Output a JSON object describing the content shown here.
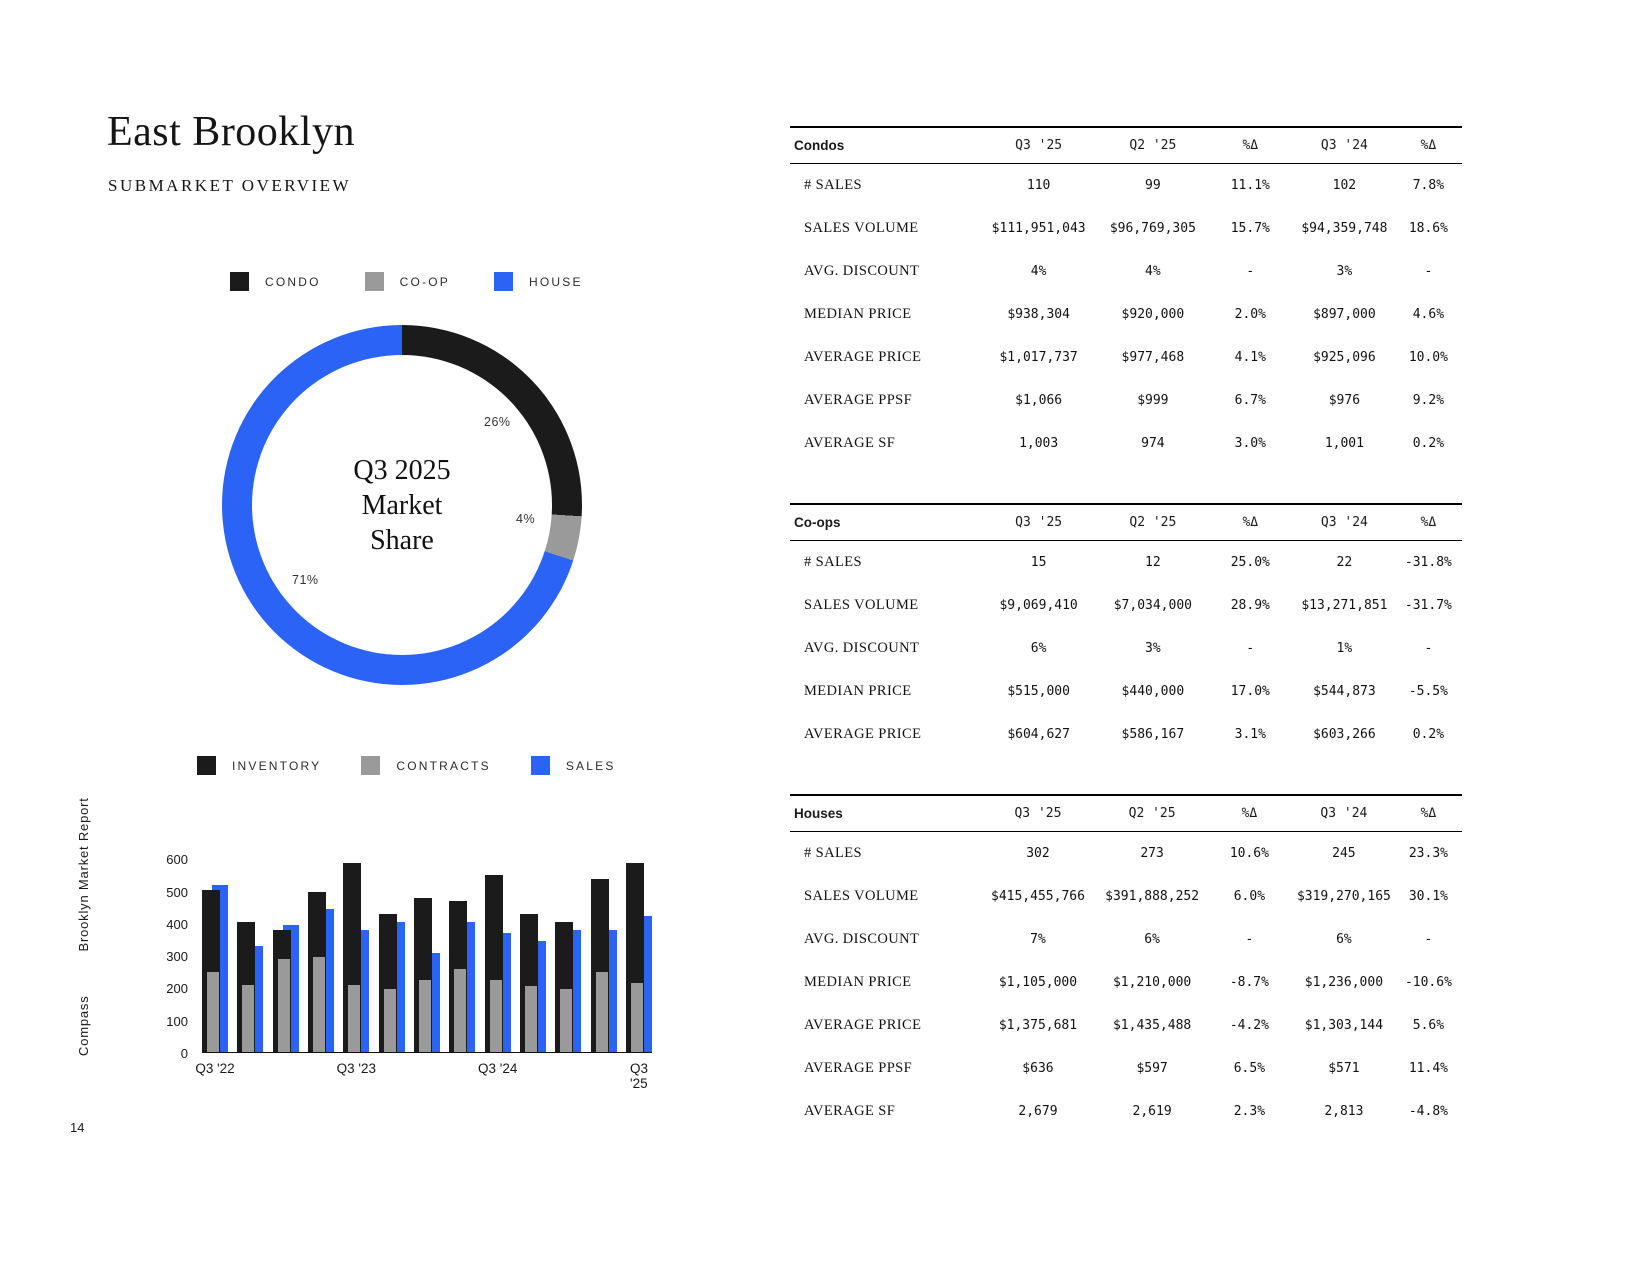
{
  "page": {
    "title": "East Brooklyn",
    "subtitle": "SUBMARKET OVERVIEW",
    "brand": "Compass",
    "report_name": "Brooklyn Market Report",
    "page_number": "14"
  },
  "colors": {
    "condo": "#1b1b1b",
    "coop": "#9a9a9a",
    "house": "#2a63f6"
  },
  "chart_data": [
    {
      "type": "pie",
      "title": "Q3 2025 Market Share",
      "center_lines": [
        "Q3 2025",
        "Market",
        "Share"
      ],
      "legend": [
        {
          "label": "CONDO",
          "color": "#1b1b1b"
        },
        {
          "label": "CO-OP",
          "color": "#9a9a9a"
        },
        {
          "label": "HOUSE",
          "color": "#2a63f6"
        }
      ],
      "slices": [
        {
          "label": "CONDO",
          "value": 26,
          "color": "#1b1b1b"
        },
        {
          "label": "CO-OP",
          "value": 4,
          "color": "#9a9a9a"
        },
        {
          "label": "HOUSE",
          "value": 71,
          "color": "#2a63f6"
        }
      ],
      "slice_labels": [
        "26%",
        "4%",
        "71%"
      ]
    },
    {
      "type": "bar",
      "legend": [
        {
          "label": "INVENTORY",
          "color": "#1b1b1b"
        },
        {
          "label": "CONTRACTS",
          "color": "#9a9a9a"
        },
        {
          "label": "SALES",
          "color": "#2a63f6"
        }
      ],
      "x_tick_labels": [
        "Q3 '22",
        "Q3 '23",
        "Q3 '24",
        "Q3 '25"
      ],
      "x_tick_positions": [
        0,
        4,
        8,
        12
      ],
      "y_ticks": [
        0,
        100,
        200,
        300,
        400,
        500,
        600
      ],
      "ylim": [
        0,
        620
      ],
      "series": [
        {
          "name": "INVENTORY",
          "color": "#1b1b1b",
          "values": [
            505,
            405,
            380,
            500,
            590,
            430,
            480,
            470,
            550,
            430,
            405,
            540,
            590
          ]
        },
        {
          "name": "CONTRACTS",
          "color": "#9a9a9a",
          "values": [
            250,
            210,
            290,
            295,
            210,
            195,
            225,
            260,
            225,
            205,
            195,
            250,
            215
          ]
        },
        {
          "name": "SALES",
          "color": "#2a63f6",
          "values": [
            520,
            330,
            395,
            445,
            380,
            405,
            310,
            405,
            370,
            345,
            380,
            380,
            425
          ]
        }
      ]
    }
  ],
  "tables": [
    {
      "title": "Condos",
      "headers": [
        "Q3 '25",
        "Q2 '25",
        "%Δ",
        "Q3 '24",
        "%Δ"
      ],
      "rows": [
        {
          "label": "# SALES",
          "values": [
            "110",
            "99",
            "11.1%",
            "102",
            "7.8%"
          ]
        },
        {
          "label": "SALES VOLUME",
          "values": [
            "$111,951,043",
            "$96,769,305",
            "15.7%",
            "$94,359,748",
            "18.6%"
          ]
        },
        {
          "label": "AVG. DISCOUNT",
          "values": [
            "4%",
            "4%",
            "-",
            "3%",
            "-"
          ]
        },
        {
          "label": "MEDIAN PRICE",
          "values": [
            "$938,304",
            "$920,000",
            "2.0%",
            "$897,000",
            "4.6%"
          ]
        },
        {
          "label": "AVERAGE PRICE",
          "values": [
            "$1,017,737",
            "$977,468",
            "4.1%",
            "$925,096",
            "10.0%"
          ]
        },
        {
          "label": "AVERAGE PPSF",
          "values": [
            "$1,066",
            "$999",
            "6.7%",
            "$976",
            "9.2%"
          ]
        },
        {
          "label": "AVERAGE SF",
          "values": [
            "1,003",
            "974",
            "3.0%",
            "1,001",
            "0.2%"
          ]
        }
      ]
    },
    {
      "title": "Co-ops",
      "headers": [
        "Q3 '25",
        "Q2 '25",
        "%Δ",
        "Q3 '24",
        "%Δ"
      ],
      "rows": [
        {
          "label": "# SALES",
          "values": [
            "15",
            "12",
            "25.0%",
            "22",
            "-31.8%"
          ]
        },
        {
          "label": "SALES VOLUME",
          "values": [
            "$9,069,410",
            "$7,034,000",
            "28.9%",
            "$13,271,851",
            "-31.7%"
          ]
        },
        {
          "label": "AVG. DISCOUNT",
          "values": [
            "6%",
            "3%",
            "-",
            "1%",
            "-"
          ]
        },
        {
          "label": "MEDIAN PRICE",
          "values": [
            "$515,000",
            "$440,000",
            "17.0%",
            "$544,873",
            "-5.5%"
          ]
        },
        {
          "label": "AVERAGE PRICE",
          "values": [
            "$604,627",
            "$586,167",
            "3.1%",
            "$603,266",
            "0.2%"
          ]
        }
      ]
    },
    {
      "title": "Houses",
      "headers": [
        "Q3 '25",
        "Q2 '25",
        "%Δ",
        "Q3 '24",
        "%Δ"
      ],
      "rows": [
        {
          "label": "# SALES",
          "values": [
            "302",
            "273",
            "10.6%",
            "245",
            "23.3%"
          ]
        },
        {
          "label": "SALES VOLUME",
          "values": [
            "$415,455,766",
            "$391,888,252",
            "6.0%",
            "$319,270,165",
            "30.1%"
          ]
        },
        {
          "label": "AVG. DISCOUNT",
          "values": [
            "7%",
            "6%",
            "-",
            "6%",
            "-"
          ]
        },
        {
          "label": "MEDIAN PRICE",
          "values": [
            "$1,105,000",
            "$1,210,000",
            "-8.7%",
            "$1,236,000",
            "-10.6%"
          ]
        },
        {
          "label": "AVERAGE PRICE",
          "values": [
            "$1,375,681",
            "$1,435,488",
            "-4.2%",
            "$1,303,144",
            "5.6%"
          ]
        },
        {
          "label": "AVERAGE PPSF",
          "values": [
            "$636",
            "$597",
            "6.5%",
            "$571",
            "11.4%"
          ]
        },
        {
          "label": "AVERAGE SF",
          "values": [
            "2,679",
            "2,619",
            "2.3%",
            "2,813",
            "-4.8%"
          ]
        }
      ]
    }
  ]
}
